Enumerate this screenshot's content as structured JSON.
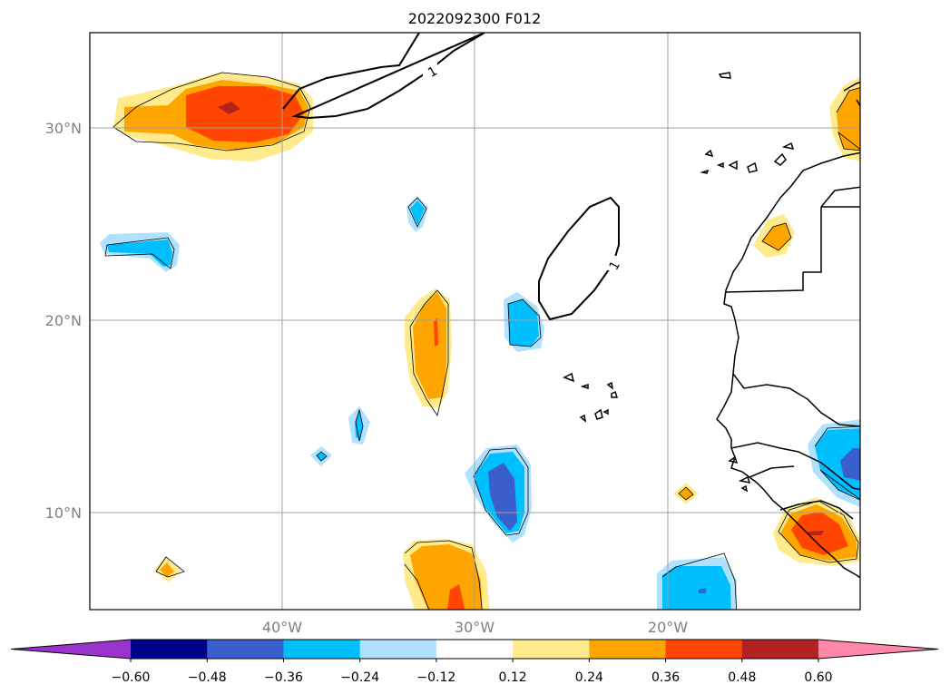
{
  "title": "2022092300 F012",
  "map": {
    "lon_range": [
      -50,
      -10
    ],
    "lat_range": [
      5,
      35
    ],
    "gridlines": true,
    "lat_tick_labels": [
      "30°N",
      "20°N",
      "10°N"
    ],
    "lon_tick_labels": [
      "40°W",
      "30°W",
      "20°W"
    ],
    "contour_line_label": "1"
  },
  "colorbar": {
    "extend": "both",
    "tick_labels": [
      "−0.60",
      "−0.48",
      "−0.36",
      "−0.24",
      "−0.12",
      "0.12",
      "0.24",
      "0.36",
      "0.48",
      "0.60"
    ],
    "colors": [
      "#9933cc",
      "#00008b",
      "#3a5fcd",
      "#00bfff",
      "#b0e2ff",
      "#ffffff",
      "#ffeb8c",
      "#ffa500",
      "#ff4500",
      "#b22222",
      "#ff88aa"
    ]
  }
}
